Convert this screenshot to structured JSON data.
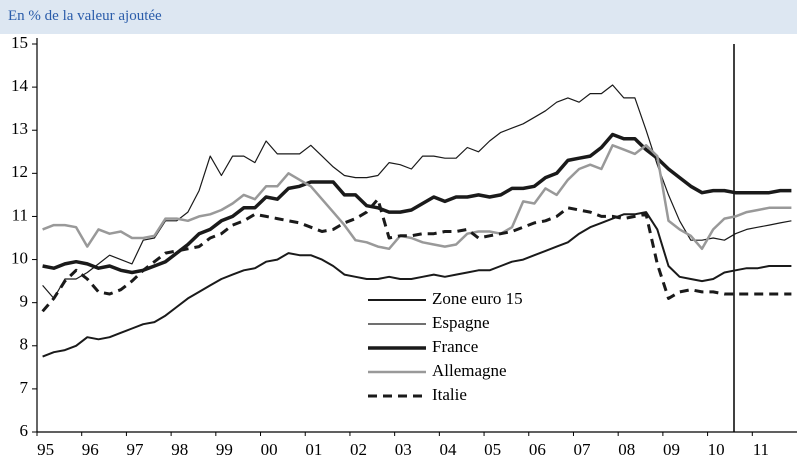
{
  "chart_data": {
    "type": "line",
    "subtitle": "En % de la valeur ajoutée",
    "categories": [
      "95",
      null,
      null,
      null,
      "96",
      null,
      null,
      null,
      "97",
      null,
      null,
      null,
      "98",
      null,
      null,
      null,
      "99",
      null,
      null,
      null,
      "00",
      null,
      null,
      null,
      "01",
      null,
      null,
      null,
      "02",
      null,
      null,
      null,
      "03",
      null,
      null,
      null,
      "04",
      null,
      null,
      null,
      "05",
      null,
      null,
      null,
      "06",
      null,
      null,
      null,
      "07",
      null,
      null,
      null,
      "08",
      null,
      null,
      null,
      "09",
      null,
      null,
      null,
      "10",
      null,
      null,
      null,
      "11",
      null,
      null,
      null
    ],
    "ylim": [
      6,
      15
    ],
    "yticks": [
      6,
      7,
      8,
      9,
      10,
      11,
      12,
      13,
      14,
      15
    ],
    "grid": false,
    "legend": "center",
    "series": [
      {
        "name": "Zone euro 15",
        "color": "#1a1a1a",
        "line_width": 2,
        "dashed": false,
        "values": [
          7.75,
          7.85,
          7.9,
          8.0,
          8.2,
          8.15,
          8.2,
          8.3,
          8.4,
          8.5,
          8.55,
          8.7,
          8.9,
          9.1,
          9.25,
          9.4,
          9.55,
          9.65,
          9.75,
          9.8,
          9.95,
          10.0,
          10.15,
          10.1,
          10.1,
          10.0,
          9.85,
          9.65,
          9.6,
          9.55,
          9.55,
          9.6,
          9.55,
          9.55,
          9.6,
          9.65,
          9.6,
          9.65,
          9.7,
          9.75,
          9.75,
          9.85,
          9.95,
          10.0,
          10.1,
          10.2,
          10.3,
          10.4,
          10.6,
          10.75,
          10.85,
          10.95,
          11.05,
          11.05,
          11.1,
          10.7,
          9.85,
          9.6,
          9.55,
          9.5,
          9.55,
          9.7,
          9.75,
          9.8,
          9.8,
          9.85,
          9.85,
          9.85
        ]
      },
      {
        "name": "Espagne",
        "color": "#1a1a1a",
        "line_width": 1.2,
        "dashed": false,
        "values": [
          9.4,
          9.1,
          9.55,
          9.55,
          9.7,
          9.9,
          10.1,
          10.0,
          9.9,
          10.45,
          10.5,
          10.9,
          10.9,
          11.1,
          11.6,
          12.4,
          11.95,
          12.4,
          12.4,
          12.25,
          12.75,
          12.45,
          12.45,
          12.45,
          12.65,
          12.4,
          12.15,
          11.95,
          11.9,
          11.9,
          11.95,
          12.25,
          12.2,
          12.1,
          12.4,
          12.4,
          12.35,
          12.35,
          12.6,
          12.5,
          12.75,
          12.95,
          13.05,
          13.15,
          13.3,
          13.45,
          13.65,
          13.75,
          13.65,
          13.85,
          13.85,
          14.05,
          13.75,
          13.75,
          13.0,
          12.2,
          11.5,
          10.9,
          10.45,
          10.45,
          10.5,
          10.45,
          10.6,
          10.7,
          10.75,
          10.8,
          10.85,
          10.9
        ]
      },
      {
        "name": "France",
        "color": "#1a1a1a",
        "line_width": 3.5,
        "dashed": false,
        "values": [
          9.85,
          9.8,
          9.9,
          9.95,
          9.9,
          9.8,
          9.85,
          9.75,
          9.7,
          9.75,
          9.85,
          9.95,
          10.15,
          10.35,
          10.6,
          10.7,
          10.9,
          11.0,
          11.2,
          11.2,
          11.45,
          11.4,
          11.65,
          11.7,
          11.8,
          11.8,
          11.8,
          11.5,
          11.5,
          11.25,
          11.2,
          11.1,
          11.1,
          11.15,
          11.3,
          11.45,
          11.35,
          11.45,
          11.45,
          11.5,
          11.45,
          11.5,
          11.65,
          11.65,
          11.7,
          11.9,
          12.0,
          12.3,
          12.35,
          12.4,
          12.6,
          12.9,
          12.8,
          12.8,
          12.55,
          12.35,
          12.1,
          11.9,
          11.7,
          11.55,
          11.6,
          11.6,
          11.55,
          11.55,
          11.55,
          11.55,
          11.6,
          11.6
        ]
      },
      {
        "name": "Allemagne",
        "color": "#999999",
        "line_width": 2.5,
        "dashed": false,
        "values": [
          10.7,
          10.8,
          10.8,
          10.75,
          10.3,
          10.7,
          10.6,
          10.65,
          10.5,
          10.5,
          10.55,
          10.95,
          10.95,
          10.9,
          11.0,
          11.05,
          11.15,
          11.3,
          11.5,
          11.4,
          11.7,
          11.7,
          12.0,
          11.85,
          11.7,
          11.4,
          11.1,
          10.8,
          10.45,
          10.4,
          10.3,
          10.25,
          10.55,
          10.5,
          10.4,
          10.35,
          10.3,
          10.35,
          10.6,
          10.65,
          10.65,
          10.6,
          10.75,
          11.35,
          11.3,
          11.65,
          11.5,
          11.85,
          12.1,
          12.2,
          12.1,
          12.65,
          12.55,
          12.45,
          12.65,
          12.4,
          10.9,
          10.7,
          10.55,
          10.25,
          10.7,
          10.95,
          11.0,
          11.1,
          11.15,
          11.2,
          11.2,
          11.2
        ]
      },
      {
        "name": "Italie",
        "color": "#1a1a1a",
        "line_width": 3,
        "dashed": true,
        "values": [
          8.8,
          9.1,
          9.5,
          9.75,
          9.55,
          9.25,
          9.2,
          9.3,
          9.5,
          9.75,
          9.95,
          10.15,
          10.2,
          10.25,
          10.3,
          10.5,
          10.6,
          10.8,
          10.9,
          11.05,
          11.0,
          10.95,
          10.9,
          10.85,
          10.75,
          10.65,
          10.7,
          10.85,
          10.95,
          11.1,
          11.4,
          10.5,
          10.55,
          10.55,
          10.6,
          10.6,
          10.65,
          10.65,
          10.7,
          10.5,
          10.55,
          10.6,
          10.65,
          10.75,
          10.85,
          10.9,
          11.0,
          11.2,
          11.15,
          11.1,
          11.0,
          11.0,
          10.95,
          11.0,
          11.05,
          9.9,
          9.1,
          9.25,
          9.3,
          9.25,
          9.25,
          9.2,
          9.2,
          9.2,
          9.2,
          9.2,
          9.2,
          9.2
        ]
      }
    ]
  }
}
